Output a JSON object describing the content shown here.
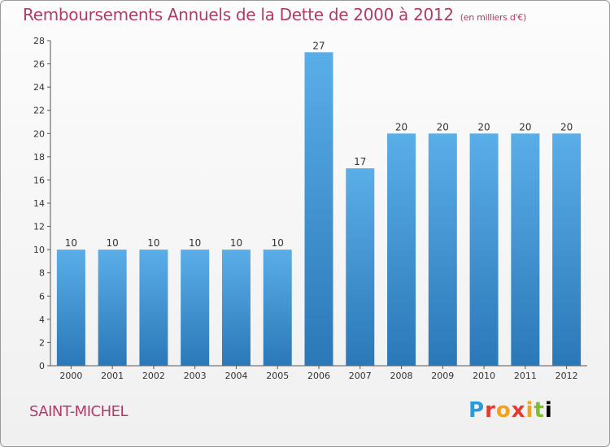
{
  "header": {
    "title": "Remboursements Annuels de la Dette de 2000 à 2012",
    "subtitle": "(en milliers d'€)"
  },
  "footer": {
    "commune": "SAINT-MICHEL",
    "logo": "Proxiti",
    "logo_letters": [
      "P",
      "r",
      "o",
      "x",
      "i",
      "t",
      "i"
    ]
  },
  "colors": {
    "bar_top": "#5aaee8",
    "bar_bottom": "#2b78b8",
    "title": "#b03a6a"
  },
  "chart_data": {
    "type": "bar",
    "title": "Remboursements Annuels de la Dette de 2000 à 2012",
    "subtitle": "(en milliers d'€)",
    "xlabel": "",
    "ylabel": "",
    "categories": [
      "2000",
      "2001",
      "2002",
      "2003",
      "2004",
      "2005",
      "2006",
      "2007",
      "2008",
      "2009",
      "2010",
      "2011",
      "2012"
    ],
    "values": [
      10,
      10,
      10,
      10,
      10,
      10,
      27,
      17,
      20,
      20,
      20,
      20,
      20
    ],
    "ylim": [
      0,
      28
    ],
    "yticks": [
      0,
      2,
      4,
      6,
      8,
      10,
      12,
      14,
      16,
      18,
      20,
      22,
      24,
      26,
      28
    ],
    "grid": false,
    "legend": "none"
  }
}
